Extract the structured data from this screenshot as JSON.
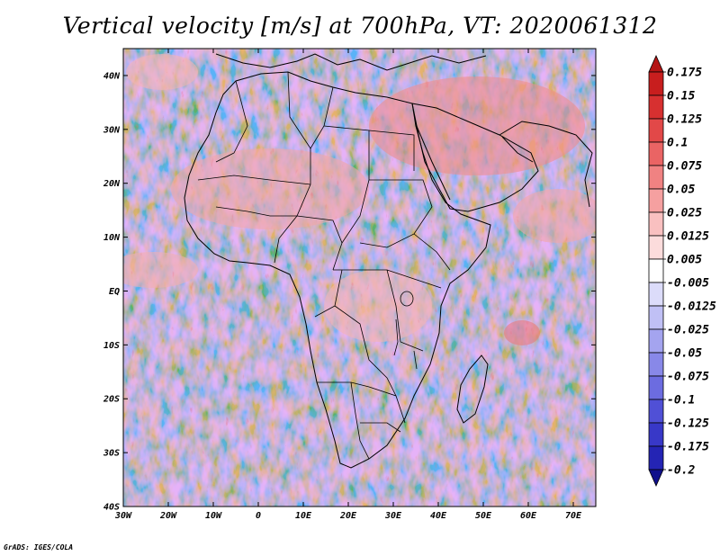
{
  "title": "Vertical velocity [m/s] at 700hPa, VT: 2020061312",
  "credit": "GrADS: IGES/COLA",
  "map": {
    "lon_range": [
      -30,
      75
    ],
    "lat_range": [
      -40,
      45
    ],
    "lat_labels": [
      {
        "value": 40,
        "text": "40N"
      },
      {
        "value": 30,
        "text": "30N"
      },
      {
        "value": 20,
        "text": "20N"
      },
      {
        "value": 10,
        "text": "10N"
      },
      {
        "value": 0,
        "text": "EQ"
      },
      {
        "value": -10,
        "text": "10S"
      },
      {
        "value": -20,
        "text": "20S"
      },
      {
        "value": -30,
        "text": "30S"
      },
      {
        "value": -40,
        "text": "40S"
      }
    ],
    "lon_labels": [
      {
        "value": -30,
        "text": "30W"
      },
      {
        "value": -20,
        "text": "20W"
      },
      {
        "value": -10,
        "text": "10W"
      },
      {
        "value": 0,
        "text": "0"
      },
      {
        "value": 10,
        "text": "10E"
      },
      {
        "value": 20,
        "text": "20E"
      },
      {
        "value": 30,
        "text": "30E"
      },
      {
        "value": 40,
        "text": "40E"
      },
      {
        "value": 50,
        "text": "50E"
      },
      {
        "value": 60,
        "text": "60E"
      },
      {
        "value": 70,
        "text": "70E"
      }
    ]
  },
  "colorbar": {
    "levels": [
      {
        "text": "0.175",
        "color": "#c81e1e"
      },
      {
        "text": "0.15",
        "color": "#d73030"
      },
      {
        "text": "0.125",
        "color": "#e24848"
      },
      {
        "text": "0.1",
        "color": "#ea6464"
      },
      {
        "text": "0.075",
        "color": "#f08282"
      },
      {
        "text": "0.05",
        "color": "#f5a0a0"
      },
      {
        "text": "0.025",
        "color": "#f9c0c0"
      },
      {
        "text": "0.0125",
        "color": "#fcdcdc"
      },
      {
        "text": "0.005",
        "color": "#ffffff"
      },
      {
        "text": "-0.005",
        "color": "#dcdcfa"
      },
      {
        "text": "-0.0125",
        "color": "#c0c0f5"
      },
      {
        "text": "-0.025",
        "color": "#a4a4ef"
      },
      {
        "text": "-0.05",
        "color": "#8888e8"
      },
      {
        "text": "-0.075",
        "color": "#6c6ce0"
      },
      {
        "text": "-0.1",
        "color": "#5050d6"
      },
      {
        "text": "-0.125",
        "color": "#3838c8"
      },
      {
        "text": "-0.175",
        "color": "#2424b4"
      },
      {
        "text": "-0.2",
        "color": "#1818a0"
      }
    ],
    "top_color": "#b41414",
    "bottom_color": "#10108c"
  }
}
